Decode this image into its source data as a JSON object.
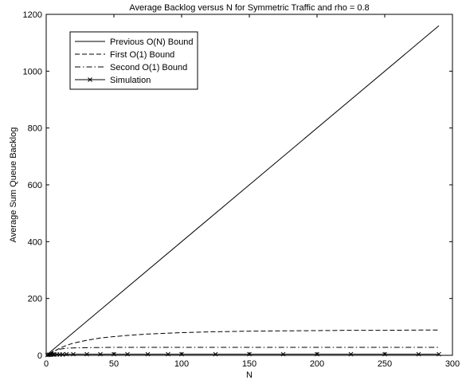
{
  "chart_data": {
    "type": "line",
    "title": "Average Backlog versus N for Symmetric Traffic and rho = 0.8",
    "xlabel": "N",
    "ylabel": "Average Sum Queue Backlog",
    "xlim": [
      0,
      300
    ],
    "ylim": [
      0,
      1200
    ],
    "xticks": [
      "0",
      "50",
      "100",
      "150",
      "200",
      "250",
      "300"
    ],
    "yticks": [
      "0",
      "200",
      "400",
      "600",
      "800",
      "1000",
      "1200"
    ],
    "grid": false,
    "legend_position": "top-left",
    "series": [
      {
        "name": "Previous O(N) Bound",
        "style": "solid",
        "marker": "none",
        "x": [
          1,
          290
        ],
        "y": [
          4,
          1160
        ]
      },
      {
        "name": "First O(1) Bound",
        "style": "dashed",
        "marker": "none",
        "x": [
          2,
          5,
          10,
          15,
          20,
          30,
          40,
          50,
          60,
          75,
          100,
          125,
          150,
          175,
          200,
          225,
          250,
          275,
          290
        ],
        "y": [
          4,
          12,
          25,
          35,
          43,
          53,
          61,
          66,
          70,
          75,
          80,
          83,
          85,
          86,
          87,
          88,
          88,
          89,
          89
        ]
      },
      {
        "name": "Second O(1) Bound",
        "style": "dash-dot",
        "marker": "none",
        "x": [
          2,
          5,
          10,
          15,
          20,
          30,
          50,
          75,
          100,
          150,
          200,
          250,
          290
        ],
        "y": [
          4,
          14,
          22,
          25,
          26,
          27,
          28,
          28,
          28,
          28,
          28,
          28,
          28
        ]
      },
      {
        "name": "Simulation",
        "style": "solid",
        "marker": "x",
        "x": [
          1,
          2,
          3,
          4,
          5,
          6,
          8,
          10,
          12,
          15,
          20,
          30,
          40,
          50,
          60,
          75,
          90,
          100,
          125,
          150,
          175,
          200,
          225,
          250,
          275,
          290
        ],
        "y": [
          1,
          2,
          2,
          3,
          3,
          3,
          3,
          3,
          3,
          4,
          4,
          4,
          4,
          4,
          4,
          4,
          4,
          4,
          4,
          4,
          4,
          4,
          4,
          4,
          4,
          4
        ]
      }
    ]
  }
}
